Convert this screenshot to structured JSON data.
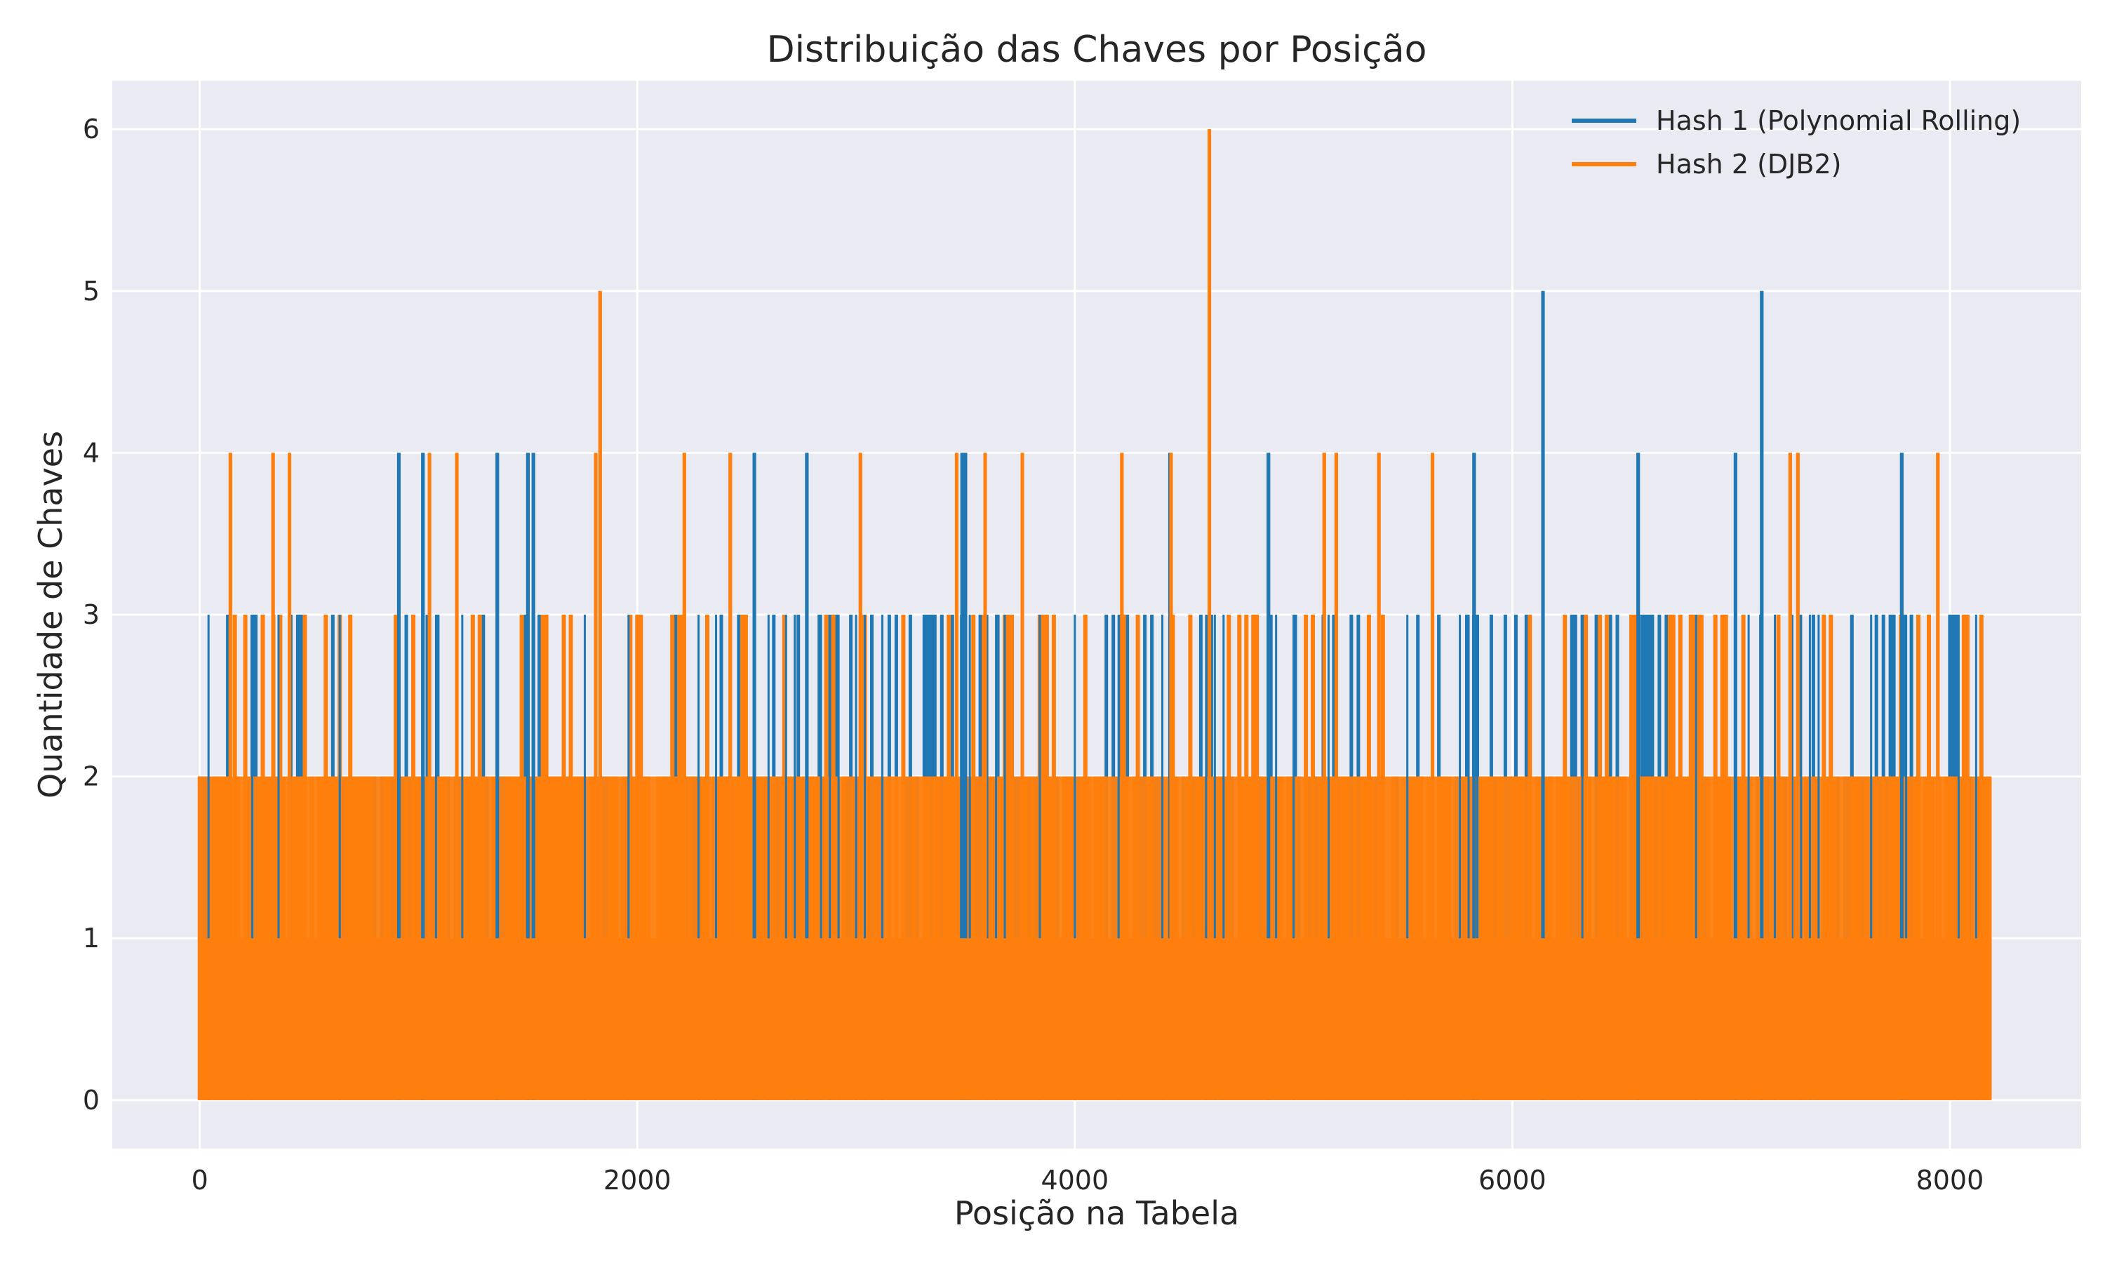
{
  "chart_data": {
    "type": "line",
    "title": "Distribuição das Chaves por Posição",
    "xlabel": "Posição na Tabela",
    "ylabel": "Quantidade de Chaves",
    "xlim": [
      -400,
      8600
    ],
    "ylim": [
      -0.3,
      6.3
    ],
    "x_ticks": [
      0,
      2000,
      4000,
      6000,
      8000
    ],
    "y_ticks": [
      0,
      1,
      2,
      3,
      4,
      5,
      6
    ],
    "x_range": [
      0,
      8191
    ],
    "grid": true,
    "legend_position": "top-right",
    "style": "seaborn-darkgrid",
    "series": [
      {
        "name": "Hash 1 (Polynomial Rolling)",
        "color": "#1f77b4",
        "peaks": [
          {
            "x": 910,
            "y": 4
          },
          {
            "x": 1020,
            "y": 4
          },
          {
            "x": 1360,
            "y": 4
          },
          {
            "x": 1500,
            "y": 4
          },
          {
            "x": 1525,
            "y": 4
          },
          {
            "x": 2535,
            "y": 4
          },
          {
            "x": 2775,
            "y": 4
          },
          {
            "x": 3485,
            "y": 4
          },
          {
            "x": 3500,
            "y": 4
          },
          {
            "x": 4435,
            "y": 4
          },
          {
            "x": 4885,
            "y": 4
          },
          {
            "x": 5825,
            "y": 4
          },
          {
            "x": 6140,
            "y": 5
          },
          {
            "x": 6575,
            "y": 4
          },
          {
            "x": 7020,
            "y": 4
          },
          {
            "x": 7140,
            "y": 5
          },
          {
            "x": 7780,
            "y": 4
          }
        ]
      },
      {
        "name": "Hash 2 (DJB2)",
        "color": "#ff7f0e",
        "peaks": [
          {
            "x": 140,
            "y": 4
          },
          {
            "x": 335,
            "y": 4
          },
          {
            "x": 410,
            "y": 4
          },
          {
            "x": 1050,
            "y": 4
          },
          {
            "x": 1175,
            "y": 4
          },
          {
            "x": 1810,
            "y": 4
          },
          {
            "x": 1830,
            "y": 5
          },
          {
            "x": 2215,
            "y": 4
          },
          {
            "x": 2425,
            "y": 4
          },
          {
            "x": 3020,
            "y": 4
          },
          {
            "x": 3460,
            "y": 4
          },
          {
            "x": 3590,
            "y": 4
          },
          {
            "x": 3760,
            "y": 4
          },
          {
            "x": 4215,
            "y": 4
          },
          {
            "x": 4440,
            "y": 4
          },
          {
            "x": 4615,
            "y": 6
          },
          {
            "x": 5140,
            "y": 4
          },
          {
            "x": 5195,
            "y": 4
          },
          {
            "x": 5390,
            "y": 4
          },
          {
            "x": 5635,
            "y": 4
          },
          {
            "x": 7270,
            "y": 4
          },
          {
            "x": 7305,
            "y": 4
          },
          {
            "x": 7945,
            "y": 4
          }
        ]
      }
    ]
  }
}
